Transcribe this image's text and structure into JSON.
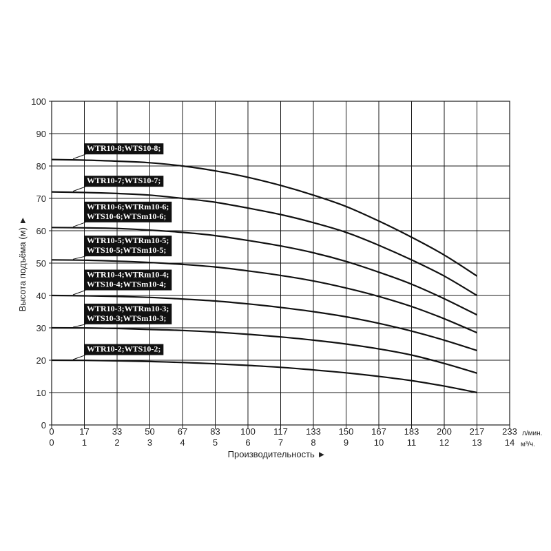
{
  "chart_data": {
    "type": "line",
    "xlabel": "Производительность ►",
    "ylabel": "Высота подъёма (м) ►",
    "x_unit_top": "л/мин.",
    "x_unit_bottom": "м³/ч.",
    "xlim": [
      0,
      14
    ],
    "ylim": [
      0,
      100
    ],
    "grid": true,
    "y_ticks": [
      "0",
      "10",
      "20",
      "30",
      "40",
      "50",
      "60",
      "70",
      "80",
      "90",
      "100"
    ],
    "x_ticks_lmin": [
      "0",
      "17",
      "33",
      "50",
      "67",
      "83",
      "100",
      "117",
      "133",
      "150",
      "167",
      "183",
      "200",
      "217",
      "233"
    ],
    "x_ticks_m3h": [
      "0",
      "1",
      "2",
      "3",
      "4",
      "5",
      "6",
      "7",
      "8",
      "9",
      "10",
      "11",
      "12",
      "13",
      "14"
    ],
    "series": [
      {
        "name": "WTR10-8;WTS10-8;",
        "lines": [
          "WTR10-8;WTS10-8;"
        ],
        "label_y": 85.5,
        "x": [
          0,
          1,
          2,
          3,
          4,
          5,
          6,
          7,
          8,
          9,
          10,
          11,
          12,
          13
        ],
        "values": [
          82,
          81.8,
          81.5,
          81,
          80,
          78.5,
          76.5,
          74,
          71,
          67.5,
          63,
          58,
          52.5,
          46
        ]
      },
      {
        "name": "WTR10-7;WTS10-7;",
        "lines": [
          "WTR10-7;WTS10-7;"
        ],
        "label_y": 75.5,
        "x": [
          0,
          1,
          2,
          3,
          4,
          5,
          6,
          7,
          8,
          9,
          10,
          11,
          12,
          13
        ],
        "values": [
          72,
          71.8,
          71.5,
          71,
          70,
          68.8,
          67,
          65,
          62.5,
          59.5,
          55.5,
          51,
          46,
          40
        ]
      },
      {
        "name": "WTR10-6;WTRm10-6; WTS10-6;WTSm10-6;",
        "lines": [
          "WTR10-6;WTRm10-6;",
          "WTS10-6;WTSm10-6;"
        ],
        "label_y": 66,
        "x": [
          0,
          1,
          2,
          3,
          4,
          5,
          6,
          7,
          8,
          9,
          10,
          11,
          12,
          13
        ],
        "values": [
          61,
          60.9,
          60.7,
          60.2,
          59.5,
          58.5,
          57,
          55.3,
          53.2,
          50.5,
          47.2,
          43.5,
          39,
          34
        ]
      },
      {
        "name": "WTR10-5;WTRm10-5; WTS10-5;WTSm10-5;",
        "lines": [
          "WTR10-5;WTRm10-5;",
          "WTS10-5;WTSm10-5;"
        ],
        "label_y": 55.5,
        "x": [
          0,
          1,
          2,
          3,
          4,
          5,
          6,
          7,
          8,
          9,
          10,
          11,
          12,
          13
        ],
        "values": [
          51,
          50.9,
          50.6,
          50.2,
          49.6,
          48.8,
          47.6,
          46.2,
          44.5,
          42.3,
          39.7,
          36.6,
          32.8,
          28.5
        ]
      },
      {
        "name": "WTR10-4;WTRm10-4; WTS10-4;WTSm10-4;",
        "lines": [
          "WTR10-4;WTRm10-4;",
          "WTS10-4;WTSm10-4;"
        ],
        "label_y": 45,
        "x": [
          0,
          1,
          2,
          3,
          4,
          5,
          6,
          7,
          8,
          9,
          10,
          11,
          12,
          13
        ],
        "values": [
          40,
          39.9,
          39.7,
          39.4,
          38.9,
          38.3,
          37.4,
          36.3,
          35,
          33.4,
          31.4,
          29,
          26.2,
          23
        ]
      },
      {
        "name": "WTR10-3;WTRm10-3; WTS10-3;WTSm10-3;",
        "lines": [
          "WTR10-3;WTRm10-3;",
          "WTS10-3;WTSm10-3;"
        ],
        "label_y": 34.5,
        "x": [
          0,
          1,
          2,
          3,
          4,
          5,
          6,
          7,
          8,
          9,
          10,
          11,
          12,
          13
        ],
        "values": [
          30,
          29.95,
          29.8,
          29.5,
          29.2,
          28.7,
          28,
          27.2,
          26.2,
          25,
          23.5,
          21.6,
          19,
          16
        ]
      },
      {
        "name": "WTR10-2;WTS10-2;",
        "lines": [
          "WTR10-2;WTS10-2;"
        ],
        "label_y": 23.5,
        "x": [
          0,
          1,
          2,
          3,
          4,
          5,
          6,
          7,
          8,
          9,
          10,
          11,
          12,
          13
        ],
        "values": [
          20,
          19.95,
          19.8,
          19.6,
          19.3,
          18.9,
          18.4,
          17.8,
          17,
          16.1,
          15,
          13.7,
          12,
          10
        ]
      }
    ]
  }
}
